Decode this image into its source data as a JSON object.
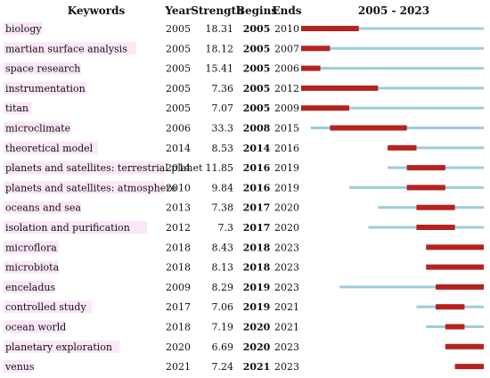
{
  "chart_data": {
    "type": "burst-timeline",
    "headers": {
      "keywords": "Keywords",
      "year": "Year",
      "strength": "Strength",
      "begins": "Begins",
      "ends": "Ends",
      "range": "2005 - 2023"
    },
    "range_start": 2005,
    "range_end": 2023,
    "colors": {
      "timeline": "#9ccbe0",
      "burst": "#b5231f",
      "highlight": "#f7c9ef"
    },
    "rows": [
      {
        "keyword": "biology",
        "year": "2005",
        "strength": "18.31",
        "begin": "2005",
        "end": "2010"
      },
      {
        "keyword": "martian surface analysis",
        "year": "2005",
        "strength": "18.12",
        "begin": "2005",
        "end": "2007"
      },
      {
        "keyword": "space research",
        "year": "2005",
        "strength": "15.41",
        "begin": "2005",
        "end": "2006"
      },
      {
        "keyword": "instrumentation",
        "year": "2005",
        "strength": "7.36",
        "begin": "2005",
        "end": "2012"
      },
      {
        "keyword": "titan",
        "year": "2005",
        "strength": "7.07",
        "begin": "2005",
        "end": "2009"
      },
      {
        "keyword": "microclimate",
        "year": "2006",
        "strength": "33.3",
        "begin": "2008",
        "end": "2015"
      },
      {
        "keyword": "theoretical model",
        "year": "2014",
        "strength": "8.53",
        "begin": "2014",
        "end": "2016"
      },
      {
        "keyword": "planets and satellites: terrestrial planet",
        "year": "2014",
        "strength": "11.85",
        "begin": "2016",
        "end": "2019"
      },
      {
        "keyword": "planets and satellites: atmosphere",
        "year": "2010",
        "strength": "9.84",
        "begin": "2016",
        "end": "2019"
      },
      {
        "keyword": "oceans and sea",
        "year": "2013",
        "strength": "7.38",
        "begin": "2017",
        "end": "2020"
      },
      {
        "keyword": "isolation and purification",
        "year": "2012",
        "strength": "7.3",
        "begin": "2017",
        "end": "2020"
      },
      {
        "keyword": "microflora",
        "year": "2018",
        "strength": "8.43",
        "begin": "2018",
        "end": "2023"
      },
      {
        "keyword": "microbiota",
        "year": "2018",
        "strength": "8.13",
        "begin": "2018",
        "end": "2023"
      },
      {
        "keyword": "enceladus",
        "year": "2009",
        "strength": "8.29",
        "begin": "2019",
        "end": "2023"
      },
      {
        "keyword": "controlled study",
        "year": "2017",
        "strength": "7.06",
        "begin": "2019",
        "end": "2021"
      },
      {
        "keyword": "ocean world",
        "year": "2018",
        "strength": "7.19",
        "begin": "2020",
        "end": "2021"
      },
      {
        "keyword": "planetary exploration",
        "year": "2020",
        "strength": "6.69",
        "begin": "2020",
        "end": "2023"
      },
      {
        "keyword": "venus",
        "year": "2021",
        "strength": "7.24",
        "begin": "2021",
        "end": "2023"
      }
    ]
  }
}
